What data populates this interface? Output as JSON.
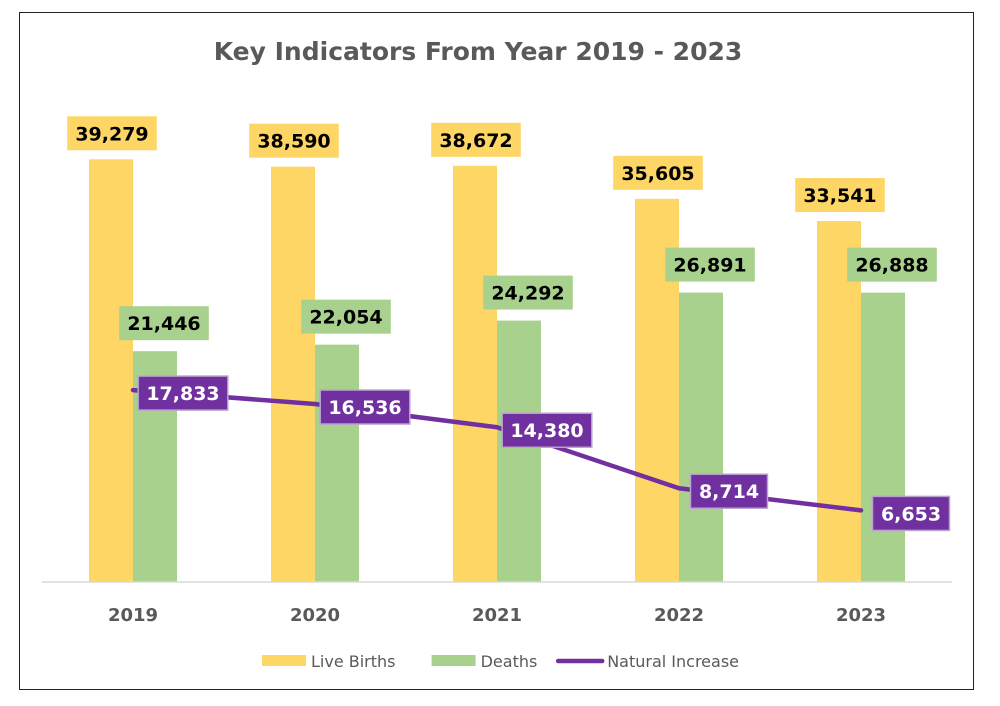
{
  "chart_data": {
    "type": "bar",
    "title": "Key Indicators From Year 2019 - 2023",
    "xlabel": "",
    "ylabel": "",
    "categories": [
      "2019",
      "2020",
      "2021",
      "2022",
      "2023"
    ],
    "ylim": [
      0,
      42000
    ],
    "grid": false,
    "legend_position": "bottom",
    "series": [
      {
        "name": "Live Births",
        "kind": "bar",
        "color": "#FDD666",
        "values": [
          39279,
          38590,
          38672,
          35605,
          33541
        ],
        "labels": [
          "39,279",
          "38,590",
          "38,672",
          "35,605",
          "33,541"
        ]
      },
      {
        "name": "Deaths",
        "kind": "bar",
        "color": "#A9D18E",
        "values": [
          21446,
          22054,
          24292,
          26891,
          26888
        ],
        "labels": [
          "21,446",
          "22,054",
          "24,292",
          "26,891",
          "26,888"
        ]
      },
      {
        "name": "Natural Increase",
        "kind": "line",
        "color": "#7030A0",
        "values": [
          17833,
          16536,
          14380,
          8714,
          6653
        ],
        "labels": [
          "17,833",
          "16,536",
          "14,380",
          "8,714",
          "6,653"
        ]
      }
    ]
  }
}
